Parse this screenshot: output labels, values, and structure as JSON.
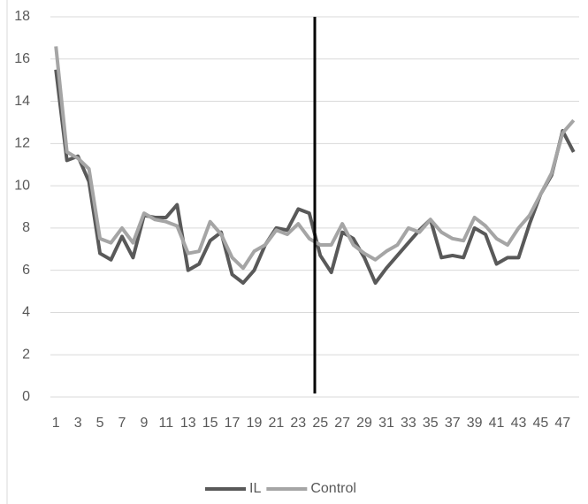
{
  "chart_data": {
    "type": "line",
    "categories": [
      "1",
      null,
      "3",
      null,
      "5",
      null,
      "7",
      null,
      "9",
      null,
      "11",
      null,
      "13",
      null,
      "15",
      null,
      "17",
      null,
      "19",
      null,
      "21",
      null,
      "23",
      null,
      "25",
      null,
      "27",
      null,
      "29",
      null,
      "31",
      null,
      "33",
      null,
      "35",
      null,
      "37",
      null,
      "39",
      null,
      "41",
      null,
      "43",
      null,
      "45",
      null,
      "47",
      null
    ],
    "series": [
      {
        "name": "IL",
        "color": "#595959",
        "values": [
          15.5,
          11.2,
          11.4,
          10.2,
          6.8,
          6.5,
          7.6,
          6.6,
          8.6,
          8.5,
          8.5,
          9.1,
          6.0,
          6.3,
          7.4,
          7.8,
          5.8,
          5.4,
          6.0,
          7.2,
          8.0,
          7.9,
          8.9,
          8.7,
          6.7,
          5.9,
          7.8,
          7.5,
          6.6,
          5.4,
          6.1,
          6.7,
          7.3,
          7.9,
          8.4,
          6.6,
          6.7,
          6.6,
          8.0,
          7.7,
          6.3,
          6.6,
          6.6,
          8.2,
          9.6,
          10.5,
          12.6,
          11.6
        ]
      },
      {
        "name": "Control",
        "color": "#a5a5a5",
        "values": [
          16.6,
          11.6,
          11.3,
          10.8,
          7.5,
          7.3,
          8.0,
          7.3,
          8.7,
          8.4,
          8.3,
          8.1,
          6.8,
          6.9,
          8.3,
          7.7,
          6.6,
          6.1,
          6.9,
          7.2,
          7.9,
          7.7,
          8.2,
          7.5,
          7.2,
          7.2,
          8.2,
          7.2,
          6.8,
          6.5,
          6.9,
          7.2,
          8.0,
          7.8,
          8.4,
          7.8,
          7.5,
          7.4,
          8.5,
          8.1,
          7.5,
          7.2,
          8.0,
          8.6,
          9.6,
          10.6,
          12.5,
          13.1
        ]
      }
    ],
    "ylim": [
      0,
      18
    ],
    "yticks": [
      0,
      2,
      4,
      6,
      8,
      10,
      12,
      14,
      16,
      18
    ],
    "grid": true,
    "vertical_line_x": 24.5,
    "vertical_line_color": "#000000",
    "legend": "bottom"
  }
}
